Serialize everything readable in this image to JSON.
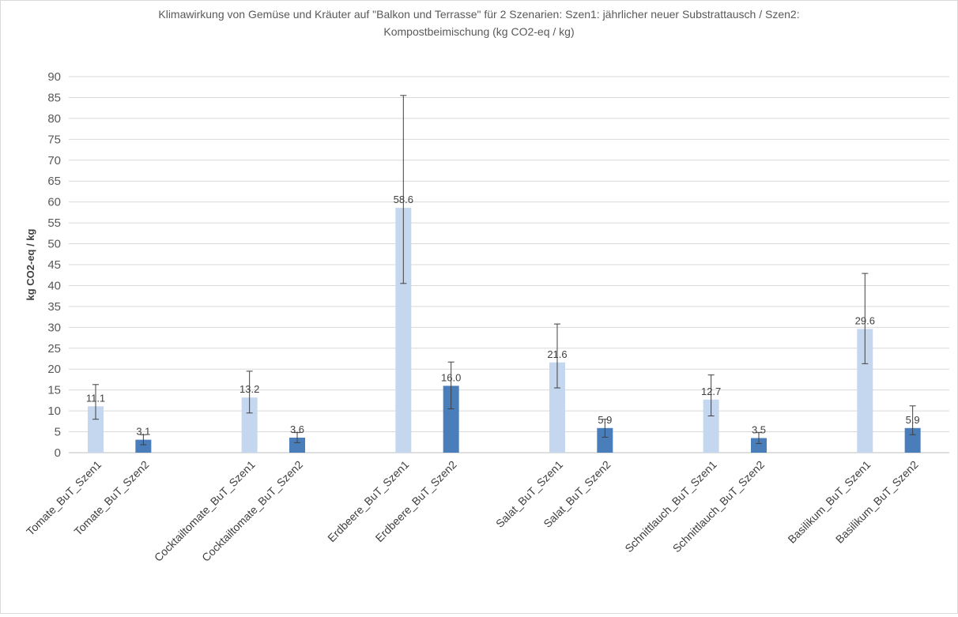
{
  "chart_data": {
    "type": "bar",
    "title_line1": "Klimawirkung von Gemüse und Kräuter auf \"Balkon und Terrasse\" für 2 Szenarien: Szen1: jährlicher neuer Substrattausch / Szen2:",
    "title_line2": "Kompostbeimischung (kg CO2-eq / kg)",
    "ylabel": "kg CO2-eq / kg",
    "ylim": [
      0,
      90
    ],
    "ytick_step": 5,
    "grid": true,
    "categories": [
      "Tomate_BuT_Szen1",
      "Tomate_BuT_Szen2",
      "Cocktailtomate_BuT_Szen1",
      "Cocktailtomate_BuT_Szen2",
      "Erdbeere_BuT_Szen1",
      "Erdbeere_BuT_Szen2",
      "Salat_BuT_Szen1",
      "Salat_BuT_Szen2",
      "Schnittlauch_BuT_Szen1",
      "Schnittlauch_BuT_Szen2",
      "Basilikum_BuT_Szen1",
      "Basilikum_BuT_Szen2"
    ],
    "values": [
      11.1,
      3.1,
      13.2,
      3.6,
      58.6,
      16.0,
      21.6,
      5.9,
      12.7,
      3.5,
      29.6,
      5.9
    ],
    "value_labels": [
      "11.1",
      "3.1",
      "13.2",
      "3.6",
      "58.6",
      "16.0",
      "21.6",
      "5.9",
      "12.7",
      "3.5",
      "29.6",
      "5.9"
    ],
    "error_low": [
      8.0,
      1.9,
      9.5,
      2.4,
      40.5,
      10.5,
      15.5,
      3.7,
      8.8,
      2.2,
      21.3,
      4.3
    ],
    "error_high": [
      16.3,
      4.3,
      19.5,
      4.8,
      85.5,
      21.7,
      30.8,
      8.0,
      18.6,
      4.8,
      42.9,
      11.2
    ],
    "colors": {
      "szen1": "#c5d7ef",
      "szen2": "#4a7ebb"
    }
  }
}
